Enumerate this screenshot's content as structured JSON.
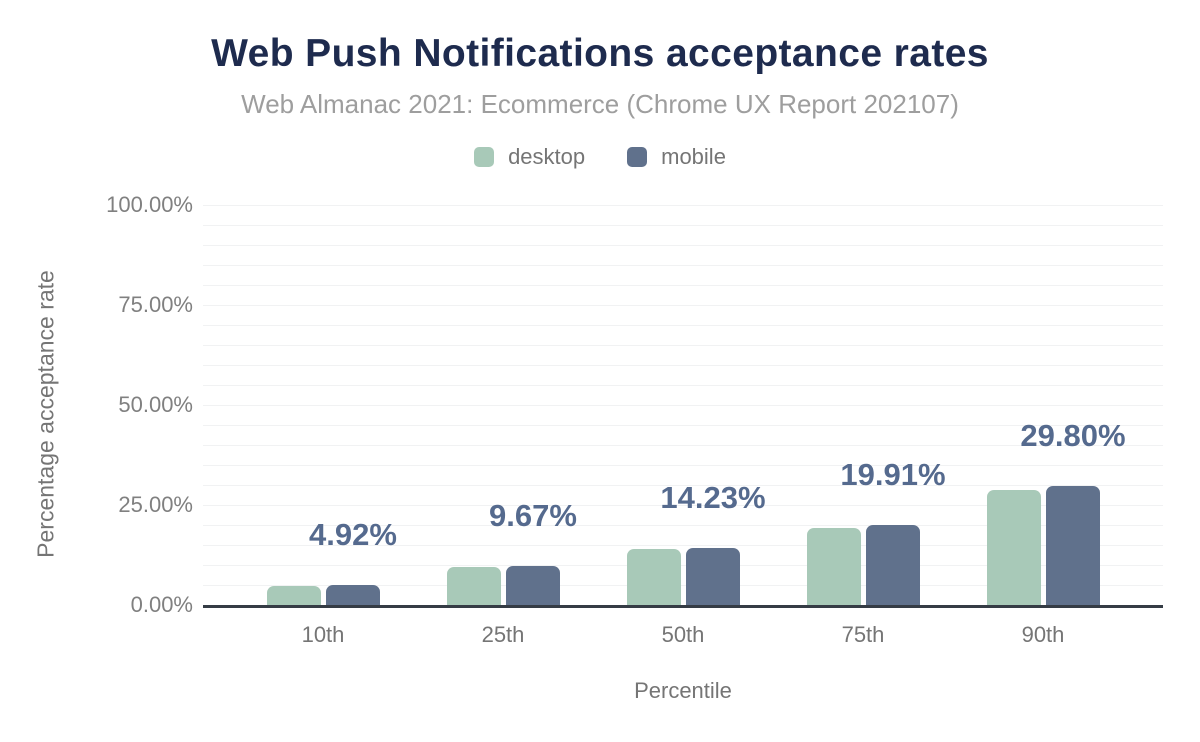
{
  "chart_data": {
    "type": "bar",
    "title": "Web Push Notifications acceptance rates",
    "subtitle": "Web Almanac 2021: Ecommerce (Chrome UX Report 202107)",
    "xlabel": "Percentile",
    "ylabel": "Percentage acceptance rate",
    "categories": [
      "10th",
      "25th",
      "50th",
      "75th",
      "90th"
    ],
    "series": [
      {
        "name": "desktop",
        "color": "#a8c9b8",
        "values": [
          4.85,
          9.6,
          14.0,
          19.2,
          28.8
        ]
      },
      {
        "name": "mobile",
        "color": "#60718c",
        "values": [
          4.92,
          9.67,
          14.23,
          19.91,
          29.8
        ]
      }
    ],
    "bar_labels": [
      "4.92%",
      "9.67%",
      "14.23%",
      "19.91%",
      "29.80%"
    ],
    "bar_labels_series": "mobile",
    "y_ticks": [
      {
        "label": "0.00%",
        "value": 0
      },
      {
        "label": "25.00%",
        "value": 25
      },
      {
        "label": "50.00%",
        "value": 50
      },
      {
        "label": "75.00%",
        "value": 75
      },
      {
        "label": "100.00%",
        "value": 100
      }
    ],
    "ylim": [
      0,
      100
    ],
    "grid": {
      "horizontal": true,
      "minor_step_percent": 5,
      "color": "#f1f2f3"
    },
    "legend_position": "top",
    "colors": {
      "background": "#ffffff",
      "title_text": "#1e2b4e",
      "subtitle_text": "#9e9e9e",
      "axis_text": "#757575",
      "tick_text": "#808080",
      "data_label_text": "#556a8e",
      "axis_line": "#353c45",
      "desktop_bar": "#a8c9b8",
      "mobile_bar": "#60718c"
    }
  }
}
